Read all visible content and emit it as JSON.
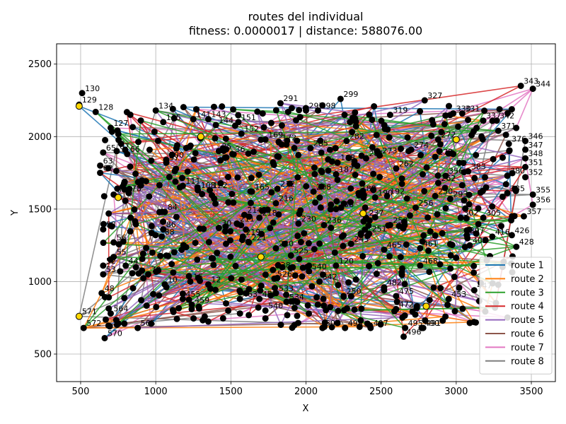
{
  "chart_data": {
    "type": "scatter",
    "title": "routes del individual",
    "subtitle": "fitness: 0.0000017 | distance: 588076.00",
    "xlabel": "X",
    "ylabel": "Y",
    "xlim": [
      340,
      3660
    ],
    "ylim": [
      310,
      2640
    ],
    "xticks": [
      500,
      1000,
      1500,
      2000,
      2500,
      3000,
      3500
    ],
    "yticks": [
      500,
      1000,
      1500,
      2000,
      2500
    ],
    "grid": true,
    "legend_position": "lower-right",
    "series": [
      {
        "name": "route 1",
        "color": "#1f77b4"
      },
      {
        "name": "route 2",
        "color": "#ff7f0e"
      },
      {
        "name": "route 3",
        "color": "#2ca02c"
      },
      {
        "name": "route 4",
        "color": "#d62728"
      },
      {
        "name": "route 5",
        "color": "#9467bd"
      },
      {
        "name": "route 6",
        "color": "#8c564b"
      },
      {
        "name": "route 7",
        "color": "#e377c2"
      },
      {
        "name": "route 8",
        "color": "#7f7f7f"
      }
    ],
    "depots": [
      {
        "x": 490,
        "y": 2210
      },
      {
        "x": 1300,
        "y": 2000
      },
      {
        "x": 2380,
        "y": 1470
      },
      {
        "x": 750,
        "y": 1580
      },
      {
        "x": 1700,
        "y": 1170
      },
      {
        "x": 2800,
        "y": 830
      },
      {
        "x": 3000,
        "y": 1980
      },
      {
        "x": 490,
        "y": 760
      }
    ],
    "labeled_points": [
      {
        "x": 510,
        "y": 2300,
        "label": "130"
      },
      {
        "x": 490,
        "y": 2220,
        "label": "129"
      },
      {
        "x": 600,
        "y": 2170,
        "label": "128"
      },
      {
        "x": 700,
        "y": 2060,
        "label": "127"
      },
      {
        "x": 1000,
        "y": 2180,
        "label": "134"
      },
      {
        "x": 1050,
        "y": 2100,
        "label": "135"
      },
      {
        "x": 1250,
        "y": 2120,
        "label": "141"
      },
      {
        "x": 1350,
        "y": 2120,
        "label": "143"
      },
      {
        "x": 1400,
        "y": 2080,
        "label": "144"
      },
      {
        "x": 1550,
        "y": 2100,
        "label": "151"
      },
      {
        "x": 1830,
        "y": 2230,
        "label": "291"
      },
      {
        "x": 2000,
        "y": 2180,
        "label": "297"
      },
      {
        "x": 2080,
        "y": 2180,
        "label": "298"
      },
      {
        "x": 2230,
        "y": 2260,
        "label": "299"
      },
      {
        "x": 2560,
        "y": 2150,
        "label": "319"
      },
      {
        "x": 2790,
        "y": 2250,
        "label": "327"
      },
      {
        "x": 2980,
        "y": 2160,
        "label": "330"
      },
      {
        "x": 3040,
        "y": 2160,
        "label": "331"
      },
      {
        "x": 3430,
        "y": 2350,
        "label": "343"
      },
      {
        "x": 3510,
        "y": 2330,
        "label": "344"
      },
      {
        "x": 3460,
        "y": 1970,
        "label": "346"
      },
      {
        "x": 3460,
        "y": 1910,
        "label": "347"
      },
      {
        "x": 3460,
        "y": 1850,
        "label": "348"
      },
      {
        "x": 3460,
        "y": 1790,
        "label": "351"
      },
      {
        "x": 3460,
        "y": 1720,
        "label": "352"
      },
      {
        "x": 3510,
        "y": 1600,
        "label": "355"
      },
      {
        "x": 3510,
        "y": 1530,
        "label": "356"
      },
      {
        "x": 3450,
        "y": 1450,
        "label": "357"
      },
      {
        "x": 3370,
        "y": 1320,
        "label": "426"
      },
      {
        "x": 3400,
        "y": 1240,
        "label": "428"
      },
      {
        "x": 3120,
        "y": 940,
        "label": "447"
      },
      {
        "x": 2950,
        "y": 880,
        "label": "453"
      },
      {
        "x": 2770,
        "y": 680,
        "label": "490"
      },
      {
        "x": 2780,
        "y": 680,
        "label": "491"
      },
      {
        "x": 2660,
        "y": 680,
        "label": "495"
      },
      {
        "x": 2650,
        "y": 620,
        "label": "496"
      },
      {
        "x": 2430,
        "y": 680,
        "label": "497"
      },
      {
        "x": 2600,
        "y": 810,
        "label": "472"
      },
      {
        "x": 520,
        "y": 680,
        "label": "572"
      },
      {
        "x": 490,
        "y": 760,
        "label": "571"
      },
      {
        "x": 660,
        "y": 610,
        "label": "570"
      },
      {
        "x": 880,
        "y": 680,
        "label": "565"
      },
      {
        "x": 700,
        "y": 780,
        "label": "564"
      },
      {
        "x": 640,
        "y": 920,
        "label": "48"
      },
      {
        "x": 650,
        "y": 1110,
        "label": "52"
      },
      {
        "x": 650,
        "y": 1050,
        "label": "53"
      },
      {
        "x": 720,
        "y": 1270,
        "label": "56"
      },
      {
        "x": 650,
        "y": 1360,
        "label": "58"
      },
      {
        "x": 720,
        "y": 1170,
        "label": "55"
      },
      {
        "x": 800,
        "y": 1110,
        "label": "44"
      },
      {
        "x": 720,
        "y": 1600,
        "label": "60"
      },
      {
        "x": 820,
        "y": 1610,
        "label": "78"
      },
      {
        "x": 630,
        "y": 1750,
        "label": "62"
      },
      {
        "x": 630,
        "y": 1800,
        "label": "63"
      },
      {
        "x": 650,
        "y": 1890,
        "label": "65"
      },
      {
        "x": 740,
        "y": 1900,
        "label": "67"
      },
      {
        "x": 810,
        "y": 1880,
        "label": "66"
      },
      {
        "x": 1070,
        "y": 1840,
        "label": "100"
      },
      {
        "x": 1070,
        "y": 1820,
        "label": "97"
      },
      {
        "x": 1040,
        "y": 1310,
        "label": "88"
      },
      {
        "x": 1050,
        "y": 1360,
        "label": "86"
      },
      {
        "x": 1060,
        "y": 1480,
        "label": "84"
      },
      {
        "x": 1420,
        "y": 1370,
        "label": "30"
      },
      {
        "x": 1380,
        "y": 1160,
        "label": "1"
      },
      {
        "x": 1350,
        "y": 980,
        "label": "12"
      },
      {
        "x": 1060,
        "y": 980,
        "label": "10"
      },
      {
        "x": 1180,
        "y": 880,
        "label": "455"
      },
      {
        "x": 1240,
        "y": 840,
        "label": "459"
      },
      {
        "x": 1560,
        "y": 880,
        "label": "463"
      },
      {
        "x": 1690,
        "y": 880,
        "label": "457"
      },
      {
        "x": 1800,
        "y": 920,
        "label": "533"
      },
      {
        "x": 1870,
        "y": 860,
        "label": "534"
      },
      {
        "x": 1730,
        "y": 800,
        "label": "540"
      },
      {
        "x": 1780,
        "y": 1080,
        "label": "528"
      },
      {
        "x": 1790,
        "y": 1020,
        "label": "526"
      },
      {
        "x": 1800,
        "y": 1230,
        "label": "220"
      },
      {
        "x": 1580,
        "y": 1310,
        "label": "219"
      },
      {
        "x": 1690,
        "y": 1440,
        "label": "218"
      },
      {
        "x": 1590,
        "y": 1460,
        "label": "214"
      },
      {
        "x": 1640,
        "y": 1620,
        "label": "165"
      },
      {
        "x": 1810,
        "y": 1640,
        "label": "212"
      },
      {
        "x": 1800,
        "y": 1540,
        "label": "216"
      },
      {
        "x": 2050,
        "y": 1620,
        "label": "208"
      },
      {
        "x": 2200,
        "y": 1500,
        "label": "238"
      },
      {
        "x": 2350,
        "y": 1610,
        "label": "189"
      },
      {
        "x": 2460,
        "y": 1580,
        "label": "190"
      },
      {
        "x": 2540,
        "y": 1590,
        "label": "192"
      },
      {
        "x": 2400,
        "y": 1850,
        "label": "281"
      },
      {
        "x": 2270,
        "y": 1970,
        "label": "282"
      },
      {
        "x": 2030,
        "y": 1920,
        "label": "285"
      },
      {
        "x": 1820,
        "y": 1960,
        "label": "172"
      },
      {
        "x": 1730,
        "y": 1980,
        "label": "169"
      },
      {
        "x": 1570,
        "y": 2020,
        "label": "152"
      },
      {
        "x": 2210,
        "y": 1820,
        "label": "188"
      },
      {
        "x": 2200,
        "y": 1740,
        "label": "187"
      },
      {
        "x": 2400,
        "y": 1440,
        "label": "237"
      },
      {
        "x": 2420,
        "y": 1330,
        "label": "251"
      },
      {
        "x": 2560,
        "y": 1390,
        "label": "253"
      },
      {
        "x": 2520,
        "y": 1220,
        "label": "465"
      },
      {
        "x": 2300,
        "y": 1260,
        "label": "243"
      },
      {
        "x": 2200,
        "y": 1110,
        "label": "120"
      },
      {
        "x": 2250,
        "y": 900,
        "label": "250"
      },
      {
        "x": 2760,
        "y": 1230,
        "label": "461"
      },
      {
        "x": 2760,
        "y": 1110,
        "label": "468"
      },
      {
        "x": 2730,
        "y": 1510,
        "label": "256"
      },
      {
        "x": 2860,
        "y": 1590,
        "label": "250"
      },
      {
        "x": 2880,
        "y": 1680,
        "label": "262"
      },
      {
        "x": 2960,
        "y": 1570,
        "label": "293"
      },
      {
        "x": 3030,
        "y": 1440,
        "label": "302"
      },
      {
        "x": 3070,
        "y": 1320,
        "label": "397"
      },
      {
        "x": 3090,
        "y": 1250,
        "label": "402"
      },
      {
        "x": 3240,
        "y": 1310,
        "label": "416"
      },
      {
        "x": 3180,
        "y": 1440,
        "label": "305"
      },
      {
        "x": 3340,
        "y": 1610,
        "label": "385"
      },
      {
        "x": 3340,
        "y": 1730,
        "label": "380"
      },
      {
        "x": 3080,
        "y": 1760,
        "label": "383"
      },
      {
        "x": 2930,
        "y": 1730,
        "label": "356"
      },
      {
        "x": 2860,
        "y": 1860,
        "label": "273"
      },
      {
        "x": 2880,
        "y": 1980,
        "label": "272"
      },
      {
        "x": 3180,
        "y": 2110,
        "label": "337"
      },
      {
        "x": 3270,
        "y": 2110,
        "label": "342"
      },
      {
        "x": 3280,
        "y": 2040,
        "label": "371"
      },
      {
        "x": 3350,
        "y": 1950,
        "label": "376"
      },
      {
        "x": 2600,
        "y": 1780,
        "label": "262"
      },
      {
        "x": 2490,
        "y": 1870,
        "label": "273"
      },
      {
        "x": 2700,
        "y": 1910,
        "label": "274"
      },
      {
        "x": 2020,
        "y": 1070,
        "label": "540"
      },
      {
        "x": 2090,
        "y": 1000,
        "label": "542"
      },
      {
        "x": 2520,
        "y": 960,
        "label": "482"
      },
      {
        "x": 2600,
        "y": 900,
        "label": "475"
      },
      {
        "x": 2110,
        "y": 680,
        "label": "507"
      },
      {
        "x": 2260,
        "y": 680,
        "label": "498"
      },
      {
        "x": 1230,
        "y": 1000,
        "label": "15"
      },
      {
        "x": 1180,
        "y": 1660,
        "label": "111"
      },
      {
        "x": 1280,
        "y": 1630,
        "label": "108"
      },
      {
        "x": 1360,
        "y": 1630,
        "label": "122"
      },
      {
        "x": 1420,
        "y": 1900,
        "label": "35"
      },
      {
        "x": 1510,
        "y": 1880,
        "label": "36"
      },
      {
        "x": 950,
        "y": 1050,
        "label": "70"
      },
      {
        "x": 1620,
        "y": 1270,
        "label": "221"
      },
      {
        "x": 1540,
        "y": 1400,
        "label": "211"
      },
      {
        "x": 1900,
        "y": 1180,
        "label": "525"
      },
      {
        "x": 1950,
        "y": 1400,
        "label": "230"
      },
      {
        "x": 2120,
        "y": 1390,
        "label": "236"
      }
    ]
  }
}
